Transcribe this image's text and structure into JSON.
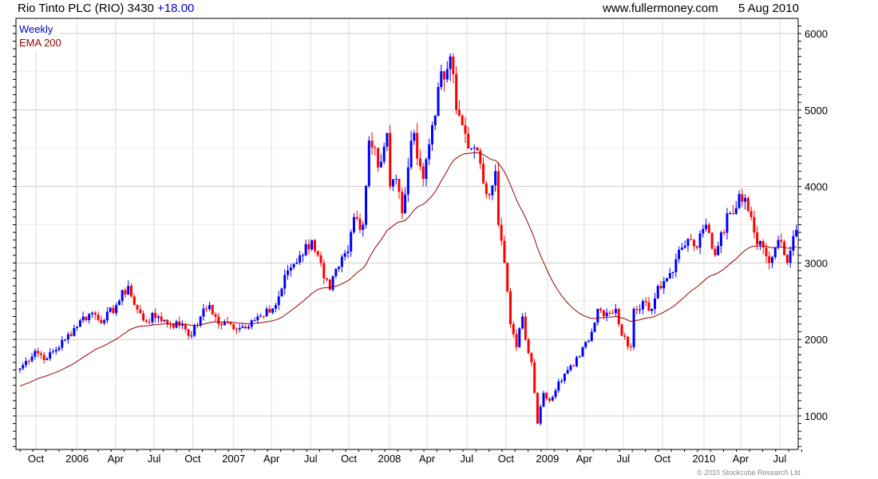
{
  "header": {
    "title": "Rio Tinto PLC (RIO) 3430",
    "change": "+18.00",
    "site": "www.fullermoney.com",
    "date": "5 Aug 2010"
  },
  "legend": {
    "weekly": "Weekly",
    "ema": "EMA 200"
  },
  "copyright": "© 2010 Stockcube Research Ltd",
  "colors": {
    "up": "#0000ff",
    "down": "#ff0000",
    "ema": "#990000",
    "change": "#0000cc",
    "grid": "#dddddd"
  },
  "chart_data": {
    "type": "candlestick",
    "title": "Rio Tinto PLC (RIO) 3430 +18.00",
    "frequency": "Weekly",
    "ylim": [
      560,
      6200
    ],
    "yticks": [
      1000,
      2000,
      3000,
      4000,
      5000,
      6000
    ],
    "xticks": [
      {
        "label": "Oct",
        "week": 5.3
      },
      {
        "label": "2006",
        "week": 19
      },
      {
        "label": "Apr",
        "week": 31.8
      },
      {
        "label": "Jul",
        "week": 44.6
      },
      {
        "label": "Oct",
        "week": 57.4
      },
      {
        "label": "2007",
        "week": 71
      },
      {
        "label": "Apr",
        "week": 83.6
      },
      {
        "label": "Jul",
        "week": 96.6
      },
      {
        "label": "Oct",
        "week": 109.3
      },
      {
        "label": "2008",
        "week": 122.8
      },
      {
        "label": "Apr",
        "week": 135.3
      },
      {
        "label": "Jul",
        "week": 148.5
      },
      {
        "label": "Oct",
        "week": 161.5
      },
      {
        "label": "2009",
        "week": 175.3
      },
      {
        "label": "Apr",
        "week": 187.5
      },
      {
        "label": "Jul",
        "week": 200.5
      },
      {
        "label": "Oct",
        "week": 213.5
      },
      {
        "label": "2010",
        "week": 227.3
      },
      {
        "label": "Apr",
        "week": 239.5
      },
      {
        "label": "Jul",
        "week": 252.5
      }
    ],
    "close_keypoints": [
      [
        0,
        1620
      ],
      [
        5,
        1850
      ],
      [
        9,
        1750
      ],
      [
        15,
        2000
      ],
      [
        20,
        2250
      ],
      [
        24,
        2350
      ],
      [
        28,
        2250
      ],
      [
        32,
        2450
      ],
      [
        36,
        2700
      ],
      [
        38,
        2450
      ],
      [
        41,
        2250
      ],
      [
        46,
        2300
      ],
      [
        50,
        2200
      ],
      [
        54,
        2200
      ],
      [
        57,
        2050
      ],
      [
        60,
        2300
      ],
      [
        63,
        2450
      ],
      [
        66,
        2200
      ],
      [
        70,
        2200
      ],
      [
        73,
        2150
      ],
      [
        77,
        2250
      ],
      [
        81,
        2300
      ],
      [
        85,
        2450
      ],
      [
        89,
        2900
      ],
      [
        93,
        3100
      ],
      [
        97,
        3300
      ],
      [
        99,
        3100
      ],
      [
        101,
        2800
      ],
      [
        103,
        2650
      ],
      [
        106,
        2950
      ],
      [
        109,
        3150
      ],
      [
        111,
        3600
      ],
      [
        114,
        3500
      ],
      [
        116,
        4600
      ],
      [
        118,
        4500
      ],
      [
        119,
        4250
      ],
      [
        122,
        4700
      ],
      [
        123,
        4000
      ],
      [
        125,
        4100
      ],
      [
        127,
        3650
      ],
      [
        129,
        4250
      ],
      [
        131,
        4700
      ],
      [
        134,
        4100
      ],
      [
        137,
        4800
      ],
      [
        139,
        5300
      ],
      [
        141,
        5400
      ],
      [
        143,
        5700
      ],
      [
        145,
        5000
      ],
      [
        147,
        4800
      ],
      [
        150,
        4500
      ],
      [
        153,
        4300
      ],
      [
        155,
        3900
      ],
      [
        158,
        4200
      ],
      [
        159,
        3500
      ],
      [
        161,
        3000
      ],
      [
        163,
        2200
      ],
      [
        165,
        1900
      ],
      [
        167,
        2300
      ],
      [
        168,
        2000
      ],
      [
        170,
        1700
      ],
      [
        171,
        1300
      ],
      [
        172,
        900
      ],
      [
        174,
        1300
      ],
      [
        176,
        1200
      ],
      [
        179,
        1450
      ],
      [
        182,
        1600
      ],
      [
        184,
        1650
      ],
      [
        187,
        1900
      ],
      [
        190,
        2100
      ],
      [
        192,
        2400
      ],
      [
        195,
        2350
      ],
      [
        198,
        2400
      ],
      [
        200,
        2050
      ],
      [
        203,
        1900
      ],
      [
        204,
        2400
      ],
      [
        207,
        2500
      ],
      [
        210,
        2400
      ],
      [
        212,
        2700
      ],
      [
        215,
        2800
      ],
      [
        218,
        3050
      ],
      [
        220,
        3200
      ],
      [
        223,
        3300
      ],
      [
        225,
        3200
      ],
      [
        228,
        3500
      ],
      [
        231,
        3100
      ],
      [
        233,
        3400
      ],
      [
        236,
        3650
      ],
      [
        239,
        3900
      ],
      [
        241,
        3850
      ],
      [
        243,
        3600
      ],
      [
        244,
        3400
      ],
      [
        247,
        3200
      ],
      [
        249,
        3000
      ],
      [
        252,
        3300
      ],
      [
        255,
        3000
      ],
      [
        257,
        3350
      ],
      [
        258,
        3430
      ]
    ],
    "ema_period_label": "EMA 200",
    "ema_start": 1380
  }
}
